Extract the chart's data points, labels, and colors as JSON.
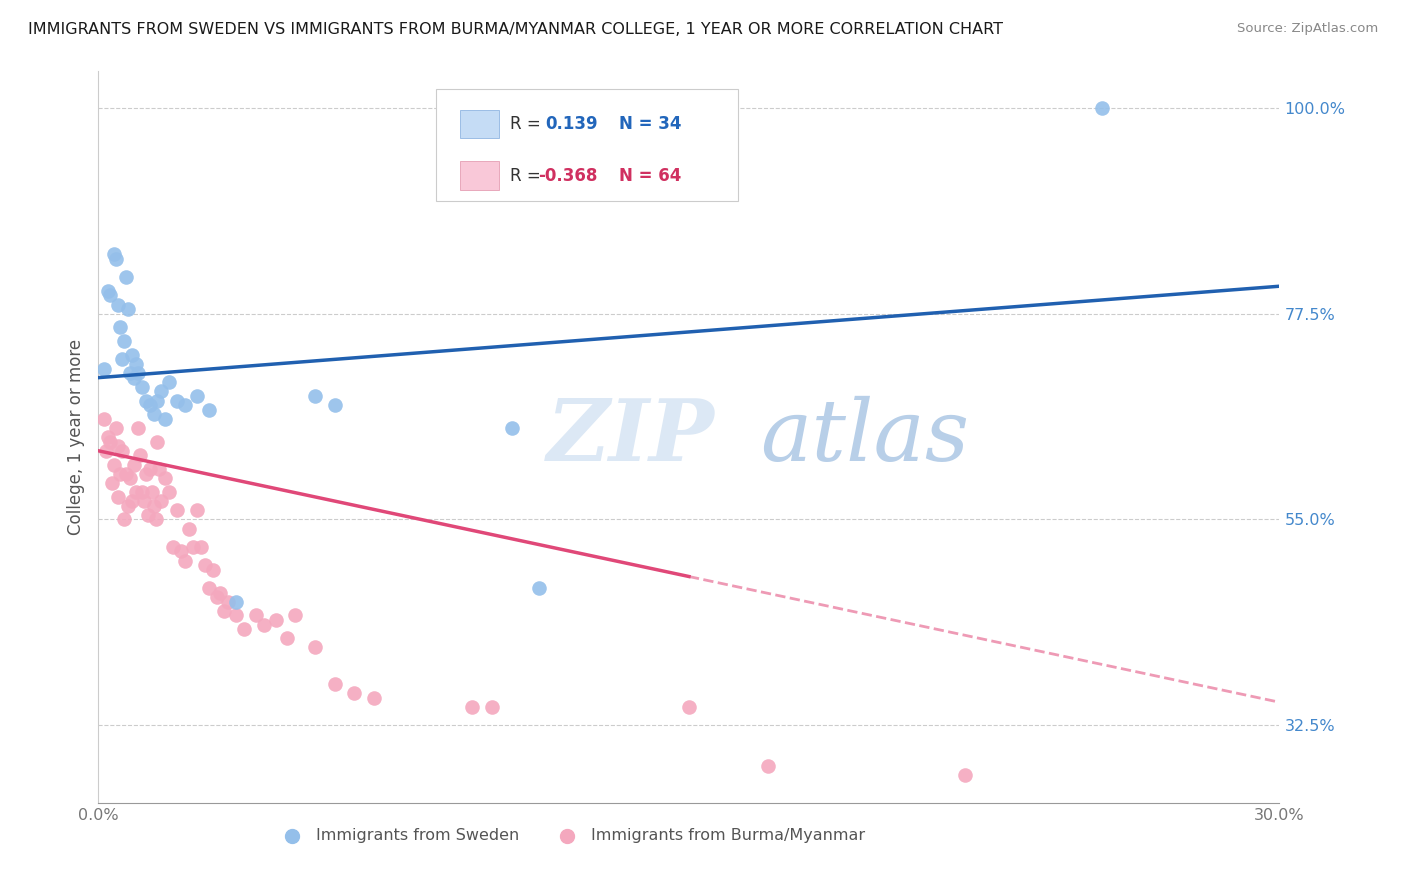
{
  "title": "IMMIGRANTS FROM SWEDEN VS IMMIGRANTS FROM BURMA/MYANMAR COLLEGE, 1 YEAR OR MORE CORRELATION CHART",
  "source": "Source: ZipAtlas.com",
  "ylabel": "College, 1 year or more",
  "xlim": [
    0.0,
    30.0
  ],
  "ylim": [
    24.0,
    104.0
  ],
  "yticks": [
    32.5,
    55.0,
    77.5,
    100.0
  ],
  "ytick_labels": [
    "32.5%",
    "55.0%",
    "77.5%",
    "100.0%"
  ],
  "xticks": [
    0.0,
    5.0,
    10.0,
    15.0,
    20.0,
    25.0,
    30.0
  ],
  "xtick_labels": [
    "0.0%",
    "",
    "",
    "",
    "",
    "",
    "30.0%"
  ],
  "R_sweden": 0.139,
  "N_sweden": 34,
  "R_burma": -0.368,
  "N_burma": 64,
  "color_sweden": "#94bfea",
  "color_burma": "#f4a8be",
  "trendline_sweden_color": "#2060b0",
  "trendline_burma_color": "#e04878",
  "background_color": "#ffffff",
  "sweden_trendline_y0": 70.5,
  "sweden_trendline_y1": 80.5,
  "burma_trendline_y0": 62.5,
  "burma_trendline_y1": 35.0,
  "burma_trendline_solid_end_x": 15.0,
  "sweden_x": [
    0.15,
    0.25,
    0.3,
    0.4,
    0.45,
    0.5,
    0.55,
    0.6,
    0.65,
    0.7,
    0.75,
    0.8,
    0.85,
    0.9,
    0.95,
    1.0,
    1.1,
    1.2,
    1.3,
    1.4,
    1.5,
    1.6,
    1.7,
    1.8,
    2.0,
    2.2,
    2.5,
    2.8,
    3.5,
    5.5,
    6.0,
    10.5,
    11.2,
    25.5
  ],
  "sweden_y": [
    71.5,
    80.0,
    79.5,
    84.0,
    83.5,
    78.5,
    76.0,
    72.5,
    74.5,
    81.5,
    78.0,
    71.0,
    73.0,
    70.5,
    72.0,
    71.0,
    69.5,
    68.0,
    67.5,
    66.5,
    68.0,
    69.0,
    66.0,
    70.0,
    68.0,
    67.5,
    68.5,
    67.0,
    46.0,
    68.5,
    67.5,
    65.0,
    47.5,
    100.0
  ],
  "burma_x": [
    0.15,
    0.2,
    0.25,
    0.3,
    0.35,
    0.4,
    0.45,
    0.5,
    0.5,
    0.55,
    0.6,
    0.65,
    0.7,
    0.75,
    0.8,
    0.85,
    0.9,
    0.95,
    1.0,
    1.05,
    1.1,
    1.15,
    1.2,
    1.25,
    1.3,
    1.35,
    1.4,
    1.45,
    1.5,
    1.55,
    1.6,
    1.7,
    1.8,
    1.9,
    2.0,
    2.1,
    2.2,
    2.3,
    2.4,
    2.5,
    2.6,
    2.7,
    2.8,
    2.9,
    3.0,
    3.1,
    3.2,
    3.3,
    3.5,
    3.7,
    4.0,
    4.2,
    4.5,
    4.8,
    5.0,
    5.5,
    6.0,
    6.5,
    7.0,
    9.5,
    10.0,
    15.0,
    17.0,
    22.0
  ],
  "burma_y": [
    66.0,
    62.5,
    64.0,
    63.5,
    59.0,
    61.0,
    65.0,
    63.0,
    57.5,
    60.0,
    62.5,
    55.0,
    60.0,
    56.5,
    59.5,
    57.0,
    61.0,
    58.0,
    65.0,
    62.0,
    58.0,
    57.0,
    60.0,
    55.5,
    60.5,
    58.0,
    56.5,
    55.0,
    63.5,
    60.5,
    57.0,
    59.5,
    58.0,
    52.0,
    56.0,
    51.5,
    50.5,
    54.0,
    52.0,
    56.0,
    52.0,
    50.0,
    47.5,
    49.5,
    46.5,
    47.0,
    45.0,
    46.0,
    44.5,
    43.0,
    44.5,
    43.5,
    44.0,
    42.0,
    44.5,
    41.0,
    37.0,
    36.0,
    35.5,
    34.5,
    34.5,
    34.5,
    28.0,
    27.0
  ],
  "watermark_zip": "ZIP",
  "watermark_atlas": "atlas",
  "legend_box_color_sweden": "#c5dcf5",
  "legend_box_color_burma": "#f9c8d8"
}
